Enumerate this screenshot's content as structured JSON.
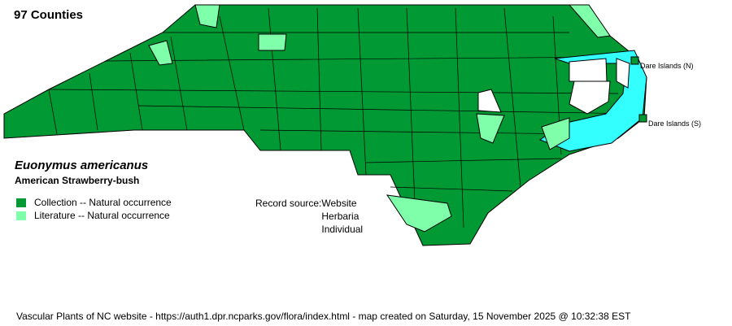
{
  "header": {
    "county_count": "97 Counties"
  },
  "species": {
    "scientific_name": "Euonymus americanus",
    "common_name": "American Strawberry-bush"
  },
  "legend": [
    {
      "label": "Collection -- Natural occurrence",
      "color": "#009933"
    },
    {
      "label": "Literature -- Natural occurrence",
      "color": "#80ffaa"
    }
  ],
  "record_source": {
    "label": "Record source:",
    "values": [
      "Website",
      "Herbaria",
      "Individual"
    ]
  },
  "map": {
    "water_color": "#33ffff",
    "no_record_color": "#ffffff",
    "island_labels": [
      "Dare Islands (N)",
      "Dare Islands (S)"
    ]
  },
  "footer": "Vascular Plants of NC website - https://auth1.dpr.ncparks.gov/flora/index.html - map created on Saturday, 15 November 2025 @ 10:32:38 EST"
}
